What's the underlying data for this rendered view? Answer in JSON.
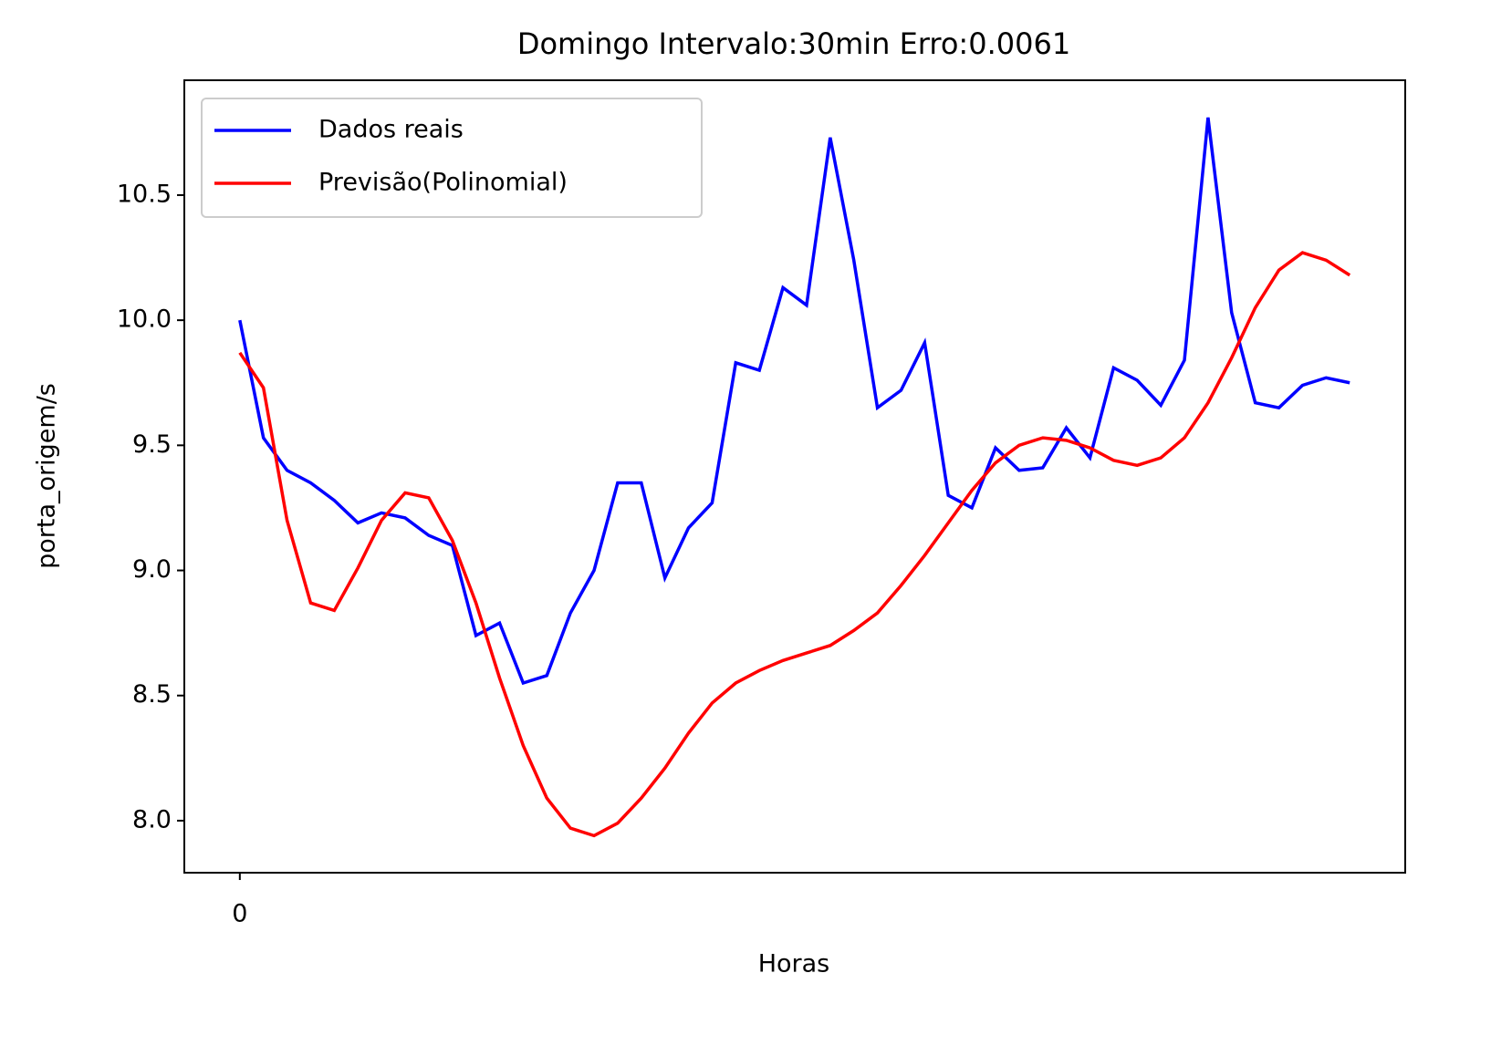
{
  "chart_data": {
    "type": "line",
    "title": "Domingo Intervalo:30min Erro:0.0061",
    "xlabel": "Horas",
    "ylabel": "porta_origem/s",
    "x": [
      0,
      1,
      2,
      3,
      4,
      5,
      6,
      7,
      8,
      9,
      10,
      11,
      12,
      13,
      14,
      15,
      16,
      17,
      18,
      19,
      20,
      21,
      22,
      23,
      24,
      25,
      26,
      27,
      28,
      29,
      30,
      31,
      32,
      33,
      34,
      35,
      36,
      37,
      38,
      39,
      40,
      41,
      42,
      43,
      44,
      45,
      46,
      47
    ],
    "series": [
      {
        "name": "Dados reais",
        "color": "#0000ff",
        "values": [
          10.0,
          9.53,
          9.4,
          9.35,
          9.28,
          9.19,
          9.23,
          9.21,
          9.14,
          9.1,
          8.74,
          8.79,
          8.55,
          8.58,
          8.83,
          9.0,
          9.35,
          9.35,
          8.97,
          9.17,
          9.27,
          9.83,
          9.8,
          10.13,
          10.06,
          10.73,
          10.24,
          9.65,
          9.72,
          9.91,
          9.3,
          9.25,
          9.49,
          9.4,
          9.41,
          9.57,
          9.45,
          9.81,
          9.76,
          9.66,
          9.84,
          10.81,
          10.03,
          9.67,
          9.65,
          9.74,
          9.77,
          9.75
        ]
      },
      {
        "name": "Previsão(Polinomial)",
        "color": "#ff0000",
        "values": [
          9.87,
          9.73,
          9.2,
          8.87,
          8.84,
          9.01,
          9.2,
          9.31,
          9.29,
          9.12,
          8.87,
          8.57,
          8.3,
          8.09,
          7.97,
          7.94,
          7.99,
          8.09,
          8.21,
          8.35,
          8.47,
          8.55,
          8.6,
          8.64,
          8.67,
          8.7,
          8.76,
          8.83,
          8.94,
          9.06,
          9.19,
          9.32,
          9.43,
          9.5,
          9.53,
          9.52,
          9.49,
          9.44,
          9.42,
          9.45,
          9.53,
          9.67,
          9.85,
          10.05,
          10.2,
          10.27,
          10.24,
          10.18
        ]
      }
    ],
    "xlim": [
      -2.35,
      49.35
    ],
    "xticks": [
      0
    ],
    "ylim": [
      7.792,
      10.959
    ],
    "yticks": [
      {
        "value": 8.0,
        "label": "8.0"
      },
      8.5,
      {
        "value": 9.0,
        "label": "9.0"
      },
      9.5,
      {
        "value": 10.0,
        "label": "10.0"
      },
      10.5
    ],
    "legend": "upper left",
    "grid": false
  }
}
